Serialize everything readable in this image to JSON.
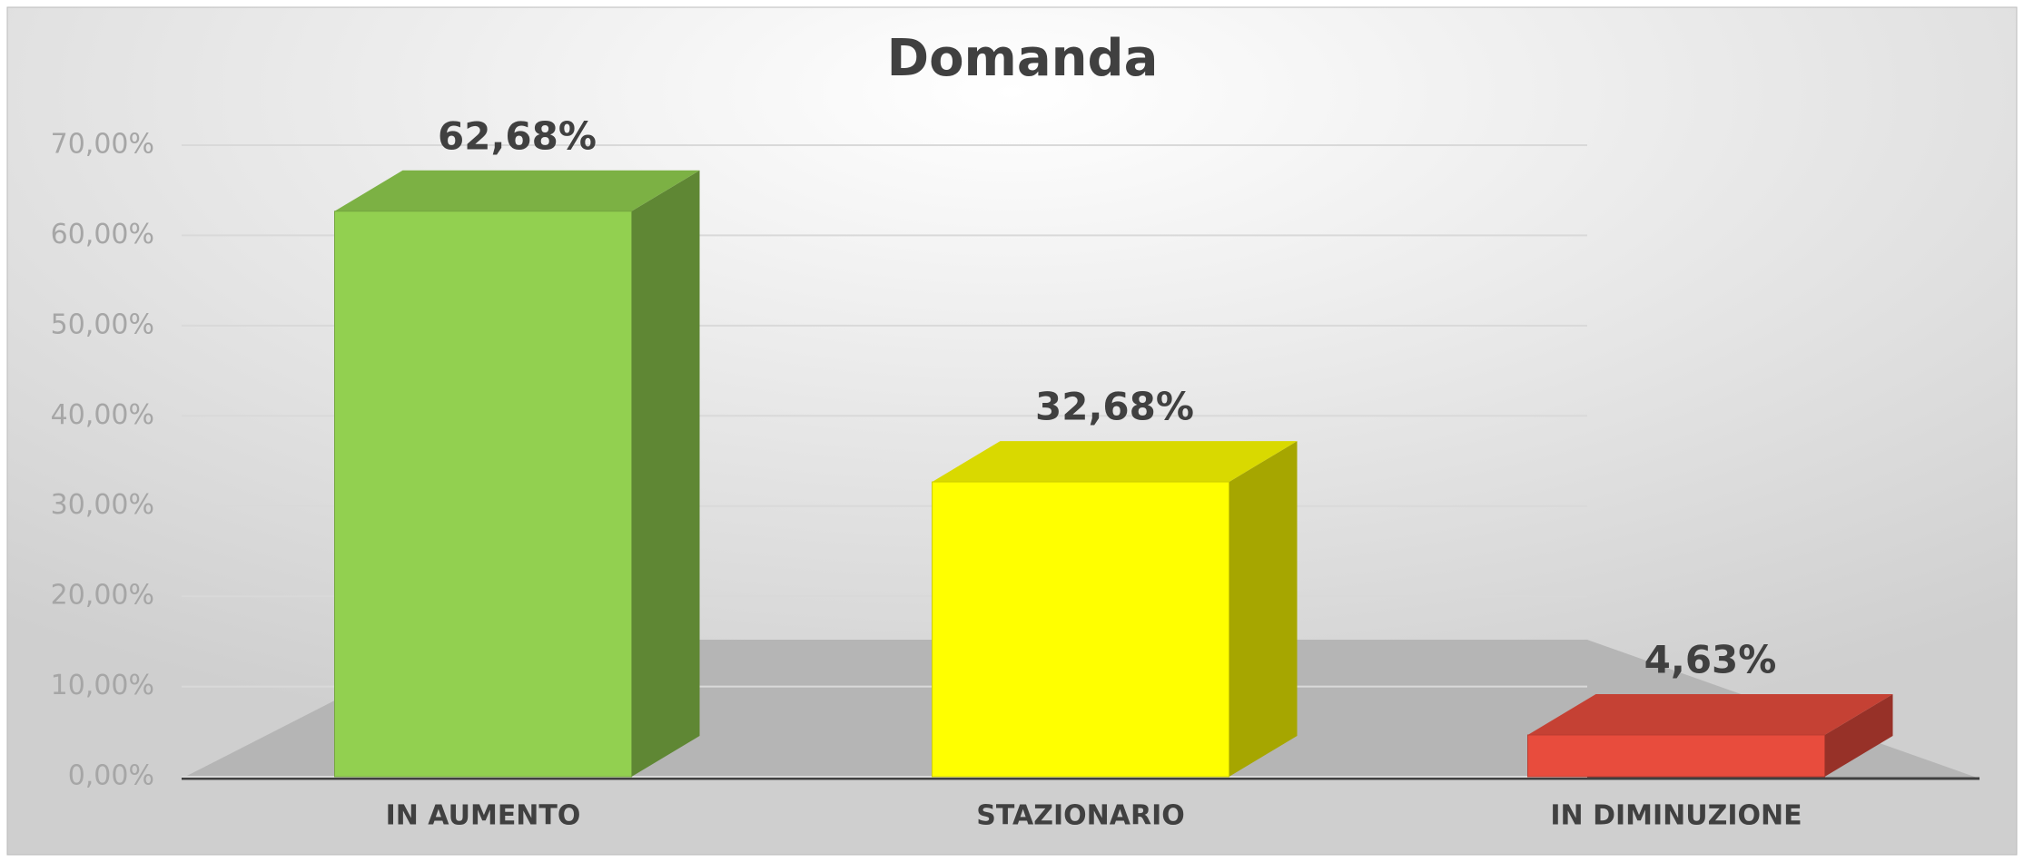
{
  "chart_data": {
    "type": "bar",
    "title": "Domanda",
    "categories": [
      "IN AUMENTO",
      "STAZIONARIO",
      "IN DIMINUZIONE"
    ],
    "values": [
      62.68,
      32.68,
      4.63
    ],
    "value_labels": [
      "62,68%",
      "32,68%",
      "4,63%"
    ],
    "colors": [
      "#92d050",
      "#ffff00",
      "#e84c3d"
    ],
    "ylim": [
      0,
      70
    ],
    "yticks": [
      {
        "value": 0,
        "label": "0,00%"
      },
      {
        "value": 10,
        "label": "10,00%"
      },
      {
        "value": 20,
        "label": "20,00%"
      },
      {
        "value": 30,
        "label": "30,00%"
      },
      {
        "value": 40,
        "label": "40,00%"
      },
      {
        "value": 50,
        "label": "50,00%"
      },
      {
        "value": 60,
        "label": "60,00%"
      },
      {
        "value": 70,
        "label": "70,00%"
      }
    ],
    "grid": true
  }
}
